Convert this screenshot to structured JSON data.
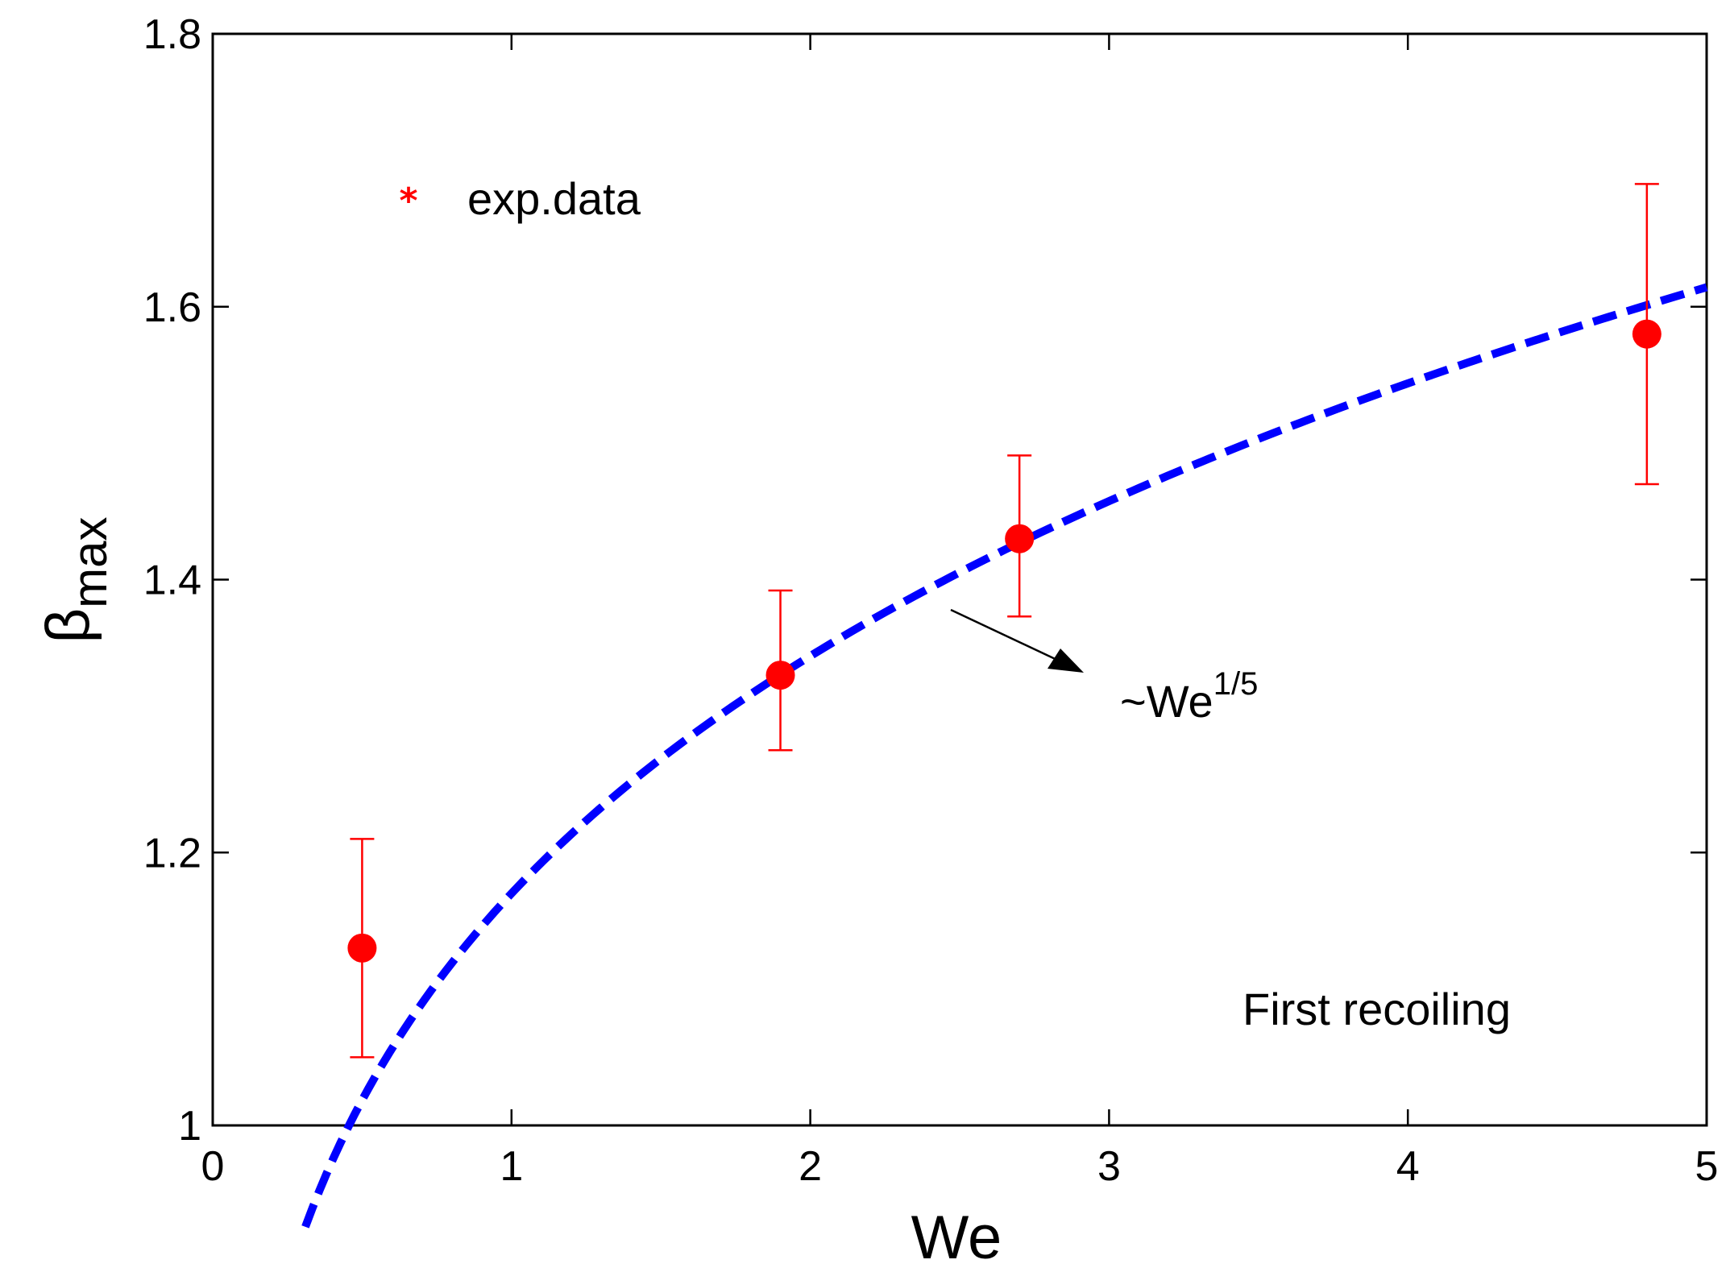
{
  "chart_data": {
    "type": "scatter",
    "title": "",
    "xlabel": "We",
    "ylabel": {
      "base": "β",
      "subscript": "max"
    },
    "xlim": [
      0,
      5
    ],
    "ylim": [
      1,
      1.8
    ],
    "x_ticks": [
      "0",
      "1",
      "2",
      "3",
      "4",
      "5"
    ],
    "y_ticks": [
      "1",
      "1.2",
      "1.4",
      "1.6",
      "1.8"
    ],
    "grid": false,
    "legend": {
      "position": "top-left",
      "label": "exp.data",
      "marker": "*"
    },
    "series": [
      {
        "name": "exp.data",
        "kind": "points-with-errorbars",
        "color": "#ff0000",
        "points": [
          {
            "x": 0.5,
            "y": 1.13,
            "ylow": 1.05,
            "yhigh": 1.21
          },
          {
            "x": 1.9,
            "y": 1.33,
            "ylow": 1.275,
            "yhigh": 1.392
          },
          {
            "x": 2.7,
            "y": 1.43,
            "ylow": 1.373,
            "yhigh": 1.491
          },
          {
            "x": 4.8,
            "y": 1.58,
            "ylow": 1.47,
            "yhigh": 1.69
          }
        ]
      },
      {
        "kind": "curve",
        "style": "dashed",
        "color": "#0000ff",
        "formula": "1.17*We^(1/5)",
        "coefficient": 1.17,
        "exponent": 0.2,
        "x_start": 0.31,
        "x_end": 5
      }
    ],
    "annotations": {
      "fit_label": {
        "prefix": "~We",
        "superscript": "1/5"
      },
      "condition_label": "First recoiling"
    }
  }
}
